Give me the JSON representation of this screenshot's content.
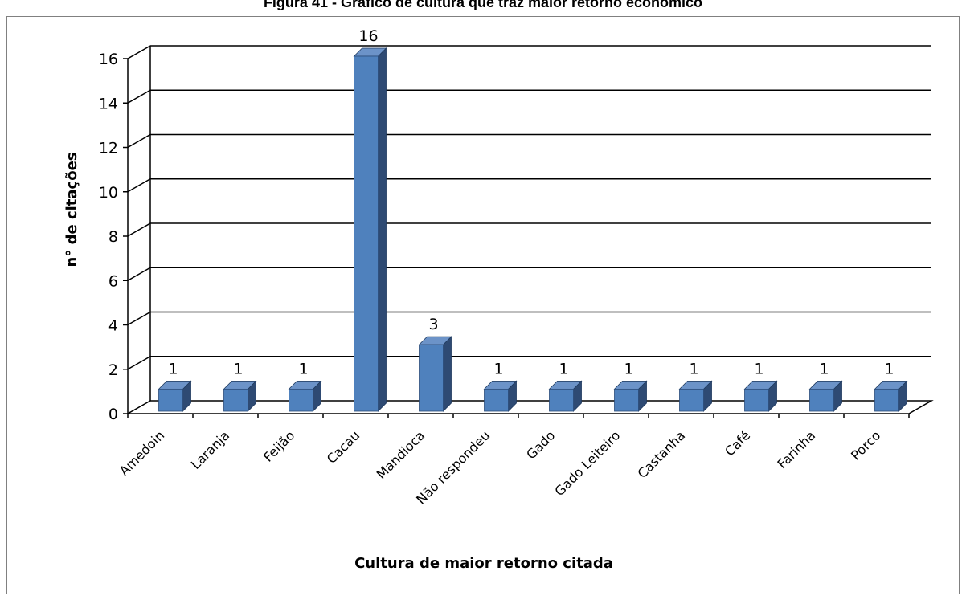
{
  "figure": {
    "caption": "Figura 41 - Gráfico de cultura que traz maior retorno econômico"
  },
  "chart_data": {
    "type": "bar",
    "style": "3d-column",
    "categories": [
      "Amedoin",
      "Laranja",
      "Feijão",
      "Cacau",
      "Mandioca",
      "Não respondeu",
      "Gado",
      "Gado Leiteiro",
      "Castanha",
      "Café",
      "Farinha",
      "Porco"
    ],
    "values": [
      1,
      1,
      1,
      16,
      3,
      1,
      1,
      1,
      1,
      1,
      1,
      1
    ],
    "data_labels": [
      "1",
      "1",
      "1",
      "16",
      "3",
      "1",
      "1",
      "1",
      "1",
      "1",
      "1",
      "1"
    ],
    "xlabel": "Cultura de maior retorno citada",
    "ylabel": "n° de citações",
    "ylim": [
      0,
      16
    ],
    "yticks": [
      0,
      2,
      4,
      6,
      8,
      10,
      12,
      14,
      16
    ],
    "grid": true,
    "legend": "none",
    "colors": {
      "bar_front": "#4F81BD",
      "bar_side": "#2E4A73",
      "bar_top": "#6C93C8",
      "gridline": "#000000"
    }
  }
}
